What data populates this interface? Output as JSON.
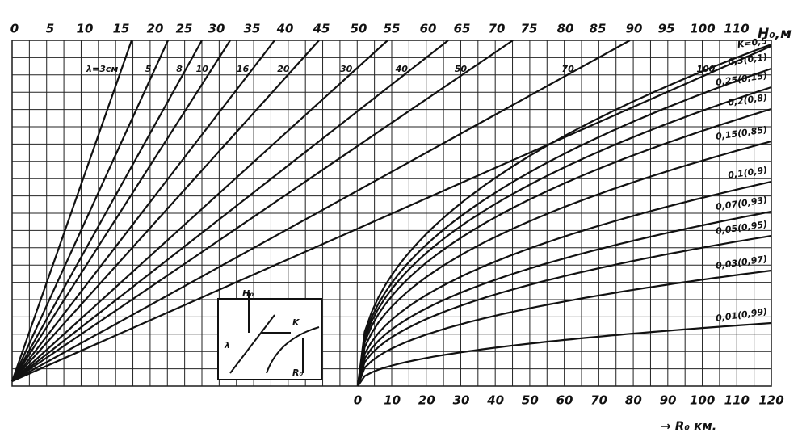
{
  "top_axis": {
    "labels": [
      0,
      5,
      10,
      15,
      20,
      25,
      30,
      35,
      40,
      45,
      50,
      55,
      60,
      65,
      70,
      75,
      80,
      85,
      90,
      95,
      100,
      110
    ],
    "title": "H₀,м"
  },
  "bottom_axis": {
    "labels": [
      0,
      10,
      20,
      30,
      40,
      50,
      60,
      70,
      80,
      90,
      100,
      110,
      120
    ],
    "title": "→ R₀ км."
  },
  "wavelength_lines": {
    "labels": [
      "λ=3см",
      "5",
      "8",
      "10",
      "16",
      "20",
      "30",
      "40",
      "50",
      "70",
      "100"
    ]
  },
  "k_curves": {
    "labels": [
      "K=0,5",
      "0,3(0,1)",
      "0,25(0,15)",
      "0,2(0,8)",
      "0,15(0,85)",
      "0,1(0,9)",
      "0,07(0,93)",
      "0,05(0,95)",
      "0,03(0,97)",
      "0,01(0,99)"
    ]
  },
  "inset": {
    "h_label": "H₀",
    "lambda_label": "λ",
    "k_label": "K",
    "r_label": "R₀"
  }
}
